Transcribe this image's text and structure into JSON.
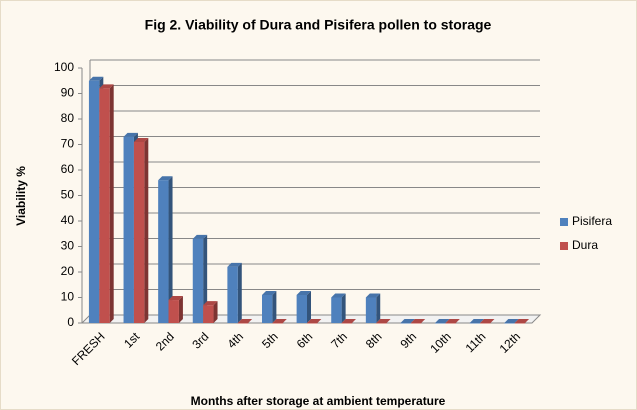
{
  "chart_data": {
    "type": "bar3d",
    "title": "Fig 2. Viability of  Dura and Pisifera pollen to storage",
    "y_label": "Viability %",
    "x_label": "Months after storage at ambient temperature",
    "categories": [
      "FRESH",
      "1st",
      "2nd",
      "3rd",
      "4th",
      "5th",
      "6th",
      "7th",
      "8th",
      "9th",
      "10th",
      "11th",
      "12th"
    ],
    "series": [
      {
        "name": "Pisifera",
        "color": "#4f81bd",
        "values": [
          95,
          73,
          56,
          33,
          22,
          11,
          11,
          10,
          10,
          0,
          0,
          0,
          0
        ]
      },
      {
        "name": "Dura",
        "color": "#c0504d",
        "values": [
          92,
          71,
          9,
          7,
          0,
          0,
          0,
          0,
          0,
          0,
          0,
          0,
          0
        ]
      }
    ],
    "ylim": [
      0,
      100
    ],
    "yticks": [
      0,
      10,
      20,
      30,
      40,
      50,
      60,
      70,
      80,
      90,
      100
    ],
    "grid": true,
    "legend": "right"
  }
}
